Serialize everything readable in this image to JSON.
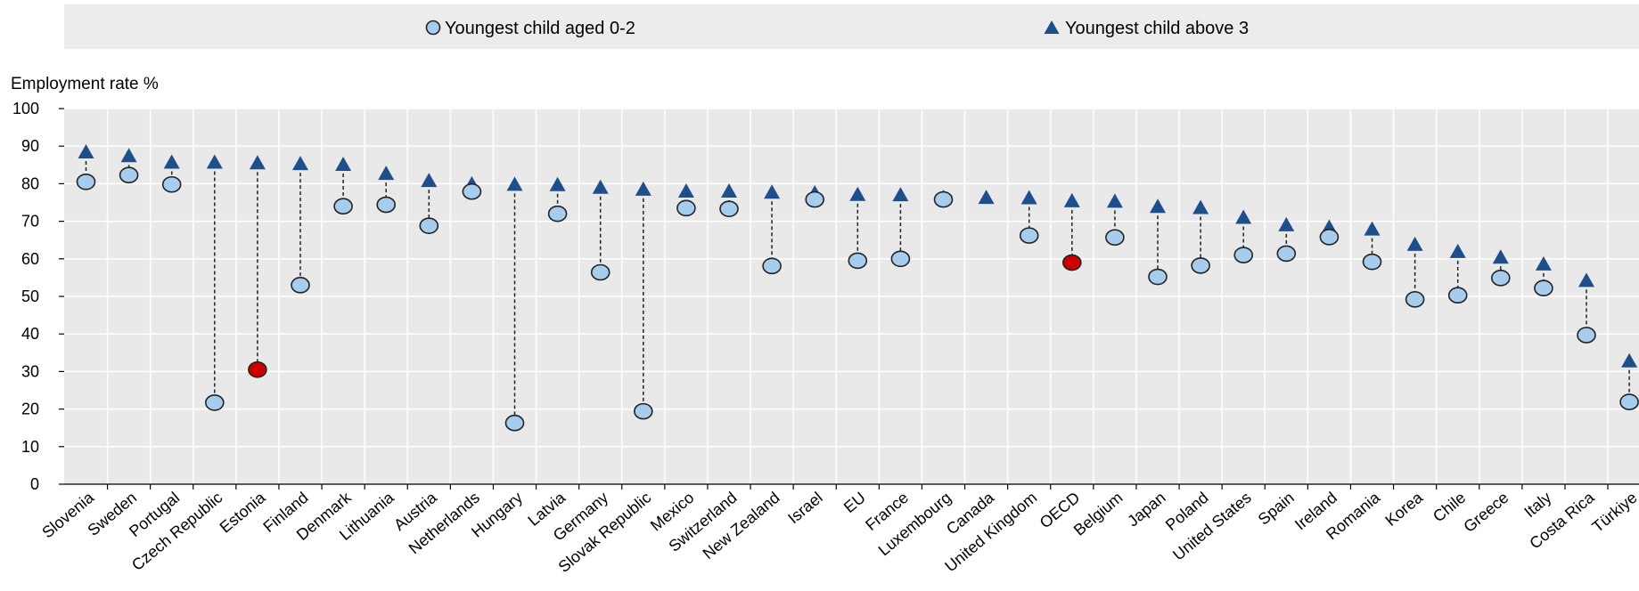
{
  "chart_data": {
    "type": "scatter",
    "ylabel": "Employment rate %",
    "ylim": [
      0,
      100
    ],
    "yticks": [
      0,
      10,
      20,
      30,
      40,
      50,
      60,
      70,
      80,
      90,
      100
    ],
    "grid": true,
    "legend_position": "top",
    "categories": [
      "Slovenia",
      "Sweden",
      "Portugal",
      "Czech Republic",
      "Estonia",
      "Finland",
      "Denmark",
      "Lithuania",
      "Austria",
      "Netherlands",
      "Hungary",
      "Latvia",
      "Germany",
      "Slovak Republic",
      "Mexico",
      "Switzerland",
      "New Zealand",
      "Israel",
      "EU",
      "France",
      "Luxembourg",
      "Canada",
      "United Kingdom",
      "OECD",
      "Belgium",
      "Japan",
      "Poland",
      "United States",
      "Spain",
      "Ireland",
      "Romania",
      "Korea",
      "Chile",
      "Greece",
      "Italy",
      "Costa Rica",
      "Türkiye"
    ],
    "highlighted_categories": [
      "Estonia",
      "OECD"
    ],
    "series": [
      {
        "name": "Youngest child aged 0-2",
        "marker": "circle",
        "color": "#a6cdee",
        "highlight_color": "#cc0000",
        "values": [
          80.5,
          82.3,
          79.8,
          21.7,
          30.5,
          53.0,
          74.0,
          74.4,
          68.8,
          77.9,
          16.3,
          72.0,
          56.4,
          19.4,
          73.5,
          73.3,
          58.1,
          75.8,
          59.5,
          60.0,
          75.8,
          null,
          66.2,
          59.0,
          65.7,
          55.2,
          58.2,
          61.0,
          61.4,
          65.8,
          59.2,
          49.2,
          50.3,
          54.9,
          52.2,
          39.7,
          21.9
        ]
      },
      {
        "name": "Youngest child above 3",
        "marker": "triangle",
        "color": "#1f4e8c",
        "values": [
          87.9,
          86.9,
          85.2,
          85.2,
          85.0,
          84.8,
          84.6,
          82.2,
          80.3,
          79.4,
          79.3,
          79.2,
          78.5,
          78.0,
          77.5,
          77.5,
          77.2,
          77.0,
          76.6,
          76.5,
          75.8,
          75.8,
          75.7,
          74.9,
          74.8,
          73.4,
          73.1,
          70.5,
          68.5,
          67.9,
          67.4,
          63.3,
          61.4,
          59.9,
          58.1,
          53.7,
          32.3
        ]
      }
    ]
  }
}
